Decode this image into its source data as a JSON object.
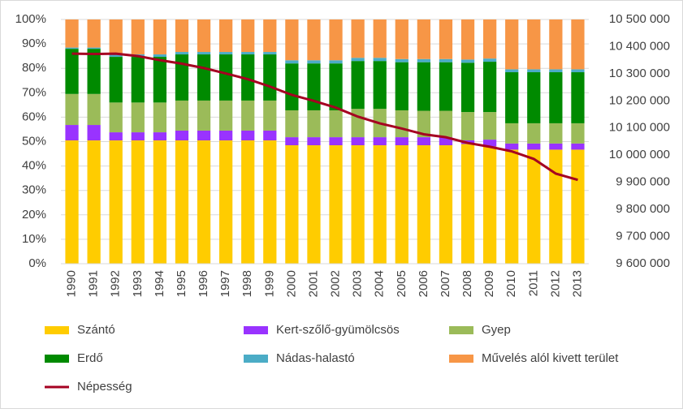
{
  "chart_data": {
    "type": "bar",
    "stacked": true,
    "categories": [
      "1990",
      "1991",
      "1992",
      "1993",
      "1994",
      "1995",
      "1996",
      "1997",
      "1998",
      "1999",
      "2000",
      "2001",
      "2002",
      "2003",
      "2004",
      "2005",
      "2006",
      "2007",
      "2008",
      "2009",
      "2010",
      "2011",
      "2012",
      "2013"
    ],
    "series": [
      {
        "name": "Szántó",
        "color": "#ffcc00",
        "values": [
          50.5,
          50.5,
          50.5,
          50.5,
          50.5,
          50.5,
          50.5,
          50.5,
          50.5,
          50.5,
          48.5,
          48.5,
          48.5,
          48.5,
          48.5,
          48.5,
          48.5,
          48.5,
          49,
          48,
          46.7,
          46.7,
          46.7,
          46.7
        ]
      },
      {
        "name": "Kert-szőlő-gyümölcsös",
        "color": "#9933ff",
        "values": [
          6.3,
          6.3,
          3.3,
          3.3,
          3.3,
          4,
          4,
          4,
          4,
          4,
          3.3,
          3.3,
          3.3,
          3.3,
          3.3,
          3.3,
          3.3,
          3.3,
          1.5,
          2.8,
          2.5,
          2.5,
          2.5,
          2.5
        ]
      },
      {
        "name": "Gyep",
        "color": "#9bbb59",
        "values": [
          12.7,
          12.7,
          12.2,
          12.2,
          12.2,
          12.3,
          12.3,
          12.3,
          12.3,
          12.3,
          11,
          11,
          11,
          11.6,
          11.6,
          11,
          10.8,
          10.8,
          11.6,
          11.3,
          8.3,
          8.3,
          8.3,
          8.3
        ]
      },
      {
        "name": "Erdő",
        "color": "#008a00",
        "values": [
          18.5,
          18.5,
          18.7,
          18.7,
          18.7,
          18.9,
          18.9,
          18.9,
          18.9,
          18.9,
          19.2,
          19.2,
          19.2,
          19.6,
          19.6,
          19.7,
          19.9,
          19.9,
          20.2,
          20.6,
          20.9,
          20.9,
          20.9,
          20.9
        ]
      },
      {
        "name": "Nádas-halastó",
        "color": "#4bacc6",
        "values": [
          0.5,
          0.5,
          1,
          1,
          1,
          1,
          1,
          1,
          1,
          1,
          1.3,
          1.3,
          1.3,
          1.3,
          1.3,
          1.3,
          1.3,
          1.3,
          1.3,
          1.3,
          1.2,
          1.2,
          1.2,
          1.2
        ]
      },
      {
        "name": "Művelés alól kivett terület",
        "color": "#f79646",
        "values": [
          11.5,
          11.5,
          14.3,
          14.3,
          14.3,
          13.3,
          13.3,
          13.3,
          13.3,
          13.3,
          16.7,
          16.7,
          16.7,
          15.7,
          15.7,
          16.2,
          16.2,
          16.2,
          16.4,
          16,
          20.4,
          20.4,
          20.4,
          20.4
        ]
      },
      {
        "name": "Népesség",
        "color": "#a50021",
        "type": "line",
        "axis": "y2",
        "values": [
          10374000,
          10373000,
          10374000,
          10365000,
          10350000,
          10337000,
          10321000,
          10301000,
          10280000,
          10253000,
          10222000,
          10200000,
          10175000,
          10142000,
          10117000,
          10098000,
          10077000,
          10066000,
          10045000,
          10031000,
          10014000,
          9986000,
          9932000,
          9909000
        ]
      }
    ],
    "ylim": [
      0,
      100
    ],
    "yticks": [
      {
        "value": 0,
        "label": "0%"
      },
      {
        "value": 10,
        "label": "10%"
      },
      {
        "value": 20,
        "label": "20%"
      },
      {
        "value": 30,
        "label": "30%"
      },
      {
        "value": 40,
        "label": "40%"
      },
      {
        "value": 50,
        "label": "50%"
      },
      {
        "value": 60,
        "label": "60%"
      },
      {
        "value": 70,
        "label": "70%"
      },
      {
        "value": 80,
        "label": "80%"
      },
      {
        "value": 90,
        "label": "90%"
      },
      {
        "value": 100,
        "label": "100%"
      }
    ],
    "y2lim": [
      9600000,
      10500000
    ],
    "y2ticks": [
      {
        "value": 9600000,
        "label": "9 600 000"
      },
      {
        "value": 9700000,
        "label": "9 700 000"
      },
      {
        "value": 9800000,
        "label": "9 800 000"
      },
      {
        "value": 9900000,
        "label": "9 900 000"
      },
      {
        "value": 10000000,
        "label": "10 000 000"
      },
      {
        "value": 10100000,
        "label": "10 100 000"
      },
      {
        "value": 10200000,
        "label": "10 200 000"
      },
      {
        "value": 10300000,
        "label": "10 300 000"
      },
      {
        "value": 10400000,
        "label": "10 400 000"
      },
      {
        "value": 10500000,
        "label": "10 500 000"
      }
    ],
    "grid": true,
    "legend": "bottom"
  }
}
